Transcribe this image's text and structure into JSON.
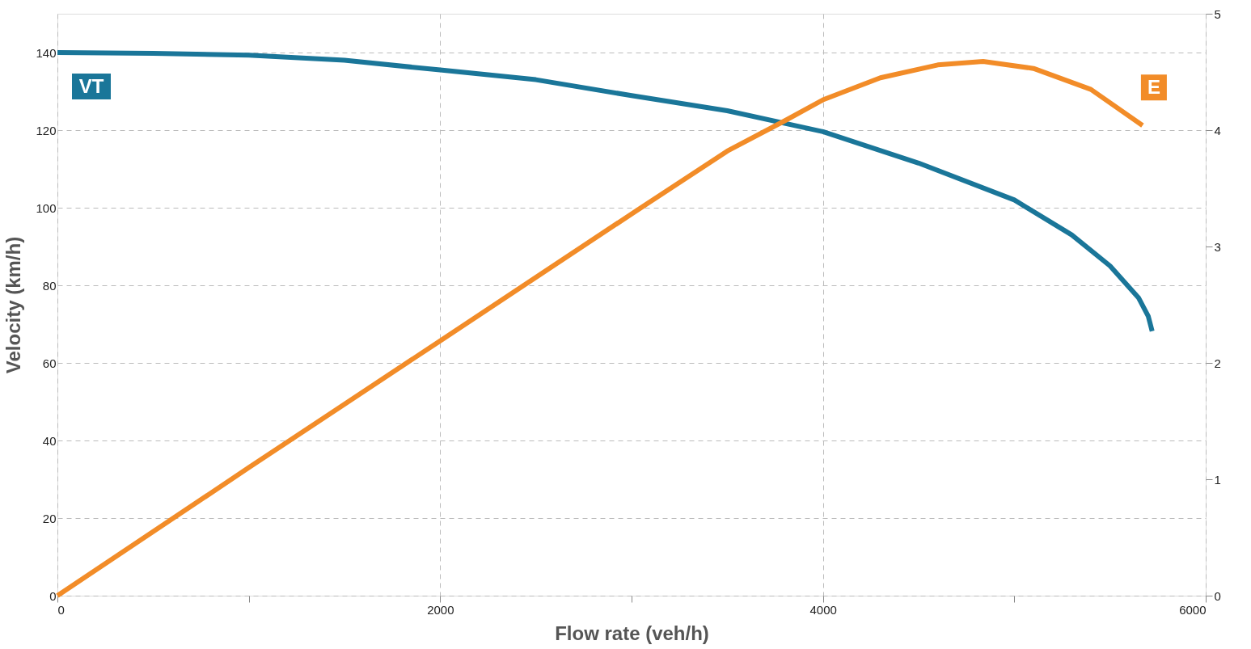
{
  "chart_data": {
    "type": "line",
    "xlabel": "Flow rate (veh/h)",
    "ylabel": "Velocity (km/h)",
    "xlim": [
      0,
      6000
    ],
    "xticks": [
      0,
      {
        "value": 1000,
        "label": null
      },
      2000,
      {
        "value": 3000,
        "label": null
      },
      4000,
      {
        "value": 5000,
        "label": null
      },
      6000
    ],
    "ylim": [
      0,
      150
    ],
    "yticks": [
      0,
      20,
      40,
      60,
      80,
      100,
      120,
      140
    ],
    "y2lim": [
      0,
      5
    ],
    "y2ticks": [
      0,
      1,
      2,
      3,
      4,
      5
    ],
    "grid": true,
    "legend": false,
    "marker": "none",
    "line_style": "solid",
    "series": [
      {
        "name": "VT",
        "color": "#1a7699",
        "x": [
          0,
          500,
          1000,
          1500,
          2000,
          2500,
          3000,
          3500,
          4000,
          4500,
          5000,
          5300,
          5500,
          5650,
          5700,
          5720
        ],
        "values": [
          140,
          139.8,
          139.3,
          138,
          135.5,
          133,
          128.9,
          125,
          119.6,
          111.5,
          102,
          93,
          85,
          76.7,
          72,
          68.2
        ]
      },
      {
        "name": "E",
        "color": "#f28c28",
        "axis": "y2",
        "x": [
          0,
          1000,
          2000,
          3000,
          3500,
          3800,
          4000,
          4300,
          4600,
          4837,
          5100,
          5400,
          5670
        ],
        "values": [
          0,
          1.1,
          2.19,
          3.28,
          3.82,
          4.08,
          4.26,
          4.45,
          4.56,
          4.59,
          4.53,
          4.35,
          4.04
        ]
      }
    ]
  }
}
